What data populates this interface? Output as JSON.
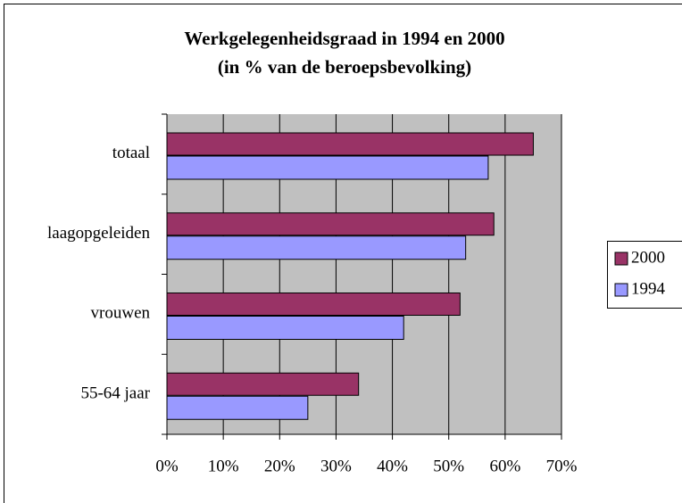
{
  "chart_data": {
    "type": "bar",
    "orientation": "horizontal",
    "title": "Werkgelegenheidsgraad in 1994 en 2000",
    "subtitle": "(in % van de beroepsbevolking)",
    "categories": [
      "totaal",
      "laagopgeleiden",
      "vrouwen",
      "55-64 jaar"
    ],
    "series": [
      {
        "name": "2000",
        "color": "#993366",
        "values": [
          65,
          58,
          52,
          34
        ]
      },
      {
        "name": "1994",
        "color": "#9999ff",
        "values": [
          57,
          53,
          42,
          25
        ]
      }
    ],
    "xlim": [
      0,
      70
    ],
    "xticks": [
      {
        "value": 0,
        "label": "0%"
      },
      {
        "value": 10,
        "label": "10%"
      },
      {
        "value": 20,
        "label": "20%"
      },
      {
        "value": 30,
        "label": "30%"
      },
      {
        "value": 40,
        "label": "40%"
      },
      {
        "value": 50,
        "label": "50%"
      },
      {
        "value": 60,
        "label": "60%"
      },
      {
        "value": 70,
        "label": "70%"
      }
    ],
    "grid": true,
    "legend": "right"
  }
}
